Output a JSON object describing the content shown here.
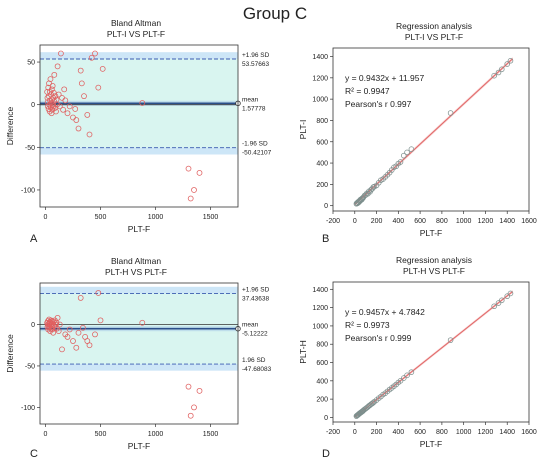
{
  "group_title": "Group C",
  "chart_data": [
    {
      "type": "scatter",
      "variant": "bland-altman",
      "panel_letter": "A",
      "title": "Bland Altman",
      "subtitle": "PLT-I VS PLT-F",
      "xlabel": "PLT-F",
      "ylabel": "Difference",
      "xlim": [
        -50,
        1750
      ],
      "ylim": [
        -120,
        70
      ],
      "xticks": [
        0,
        500,
        1000,
        1500
      ],
      "yticks": [
        -100,
        -50,
        0,
        50
      ],
      "mean": 1.57778,
      "upper_loa": 53.57663,
      "lower_loa": -50.42107,
      "labels": {
        "upper_sd": "+1.96 SD",
        "upper_val": "53.57663",
        "mean": "mean",
        "mean_val": "1.57778",
        "lower_sd": "-1.96 SD",
        "lower_val": "-50.42107"
      },
      "colors": {
        "band": "#d9f5f0",
        "band_edge": "#cde6f7",
        "mean_line": "#2b4f8a",
        "loa_line": "#3a5bb0",
        "point": "#e06060"
      },
      "points": [
        [
          15,
          15
        ],
        [
          18,
          8
        ],
        [
          20,
          3
        ],
        [
          22,
          -2
        ],
        [
          25,
          20
        ],
        [
          28,
          -5
        ],
        [
          30,
          10
        ],
        [
          32,
          25
        ],
        [
          35,
          0
        ],
        [
          38,
          -8
        ],
        [
          40,
          15
        ],
        [
          42,
          5
        ],
        [
          45,
          30
        ],
        [
          48,
          -3
        ],
        [
          50,
          12
        ],
        [
          52,
          2
        ],
        [
          55,
          -10
        ],
        [
          58,
          18
        ],
        [
          60,
          6
        ],
        [
          62,
          -6
        ],
        [
          65,
          22
        ],
        [
          68,
          0
        ],
        [
          70,
          8
        ],
        [
          72,
          -2
        ],
        [
          75,
          14
        ],
        [
          78,
          4
        ],
        [
          80,
          35
        ],
        [
          85,
          -4
        ],
        [
          90,
          10
        ],
        [
          95,
          -8
        ],
        [
          100,
          6
        ],
        [
          105,
          0
        ],
        [
          110,
          45
        ],
        [
          120,
          12
        ],
        [
          130,
          -2
        ],
        [
          140,
          60
        ],
        [
          150,
          8
        ],
        [
          160,
          -6
        ],
        [
          170,
          18
        ],
        [
          180,
          5
        ],
        [
          200,
          -10
        ],
        [
          220,
          -2
        ],
        [
          250,
          -15
        ],
        [
          270,
          -5
        ],
        [
          280,
          -18
        ],
        [
          300,
          -28
        ],
        [
          320,
          40
        ],
        [
          330,
          25
        ],
        [
          350,
          10
        ],
        [
          380,
          -12
        ],
        [
          400,
          -35
        ],
        [
          420,
          55
        ],
        [
          450,
          60
        ],
        [
          480,
          20
        ],
        [
          520,
          42
        ],
        [
          880,
          2
        ],
        [
          1300,
          -75
        ],
        [
          1320,
          -110
        ],
        [
          1350,
          -100
        ],
        [
          1400,
          -80
        ]
      ]
    },
    {
      "type": "scatter",
      "variant": "regression",
      "panel_letter": "B",
      "title": "Regression analysis",
      "subtitle": "PLT-I VS PLT-F",
      "xlabel": "PLT-F",
      "ylabel": "PLT-I",
      "xlim": [
        -200,
        1600
      ],
      "ylim": [
        -50,
        1480
      ],
      "xticks": [
        -200,
        0,
        200,
        400,
        600,
        800,
        1000,
        1200,
        1400,
        1600
      ],
      "yticks": [
        0,
        200,
        400,
        600,
        800,
        1000,
        1200,
        1400
      ],
      "equation": "y = 0.9432x + 11.957",
      "r2": "R² = 0.9947",
      "pearson": "Pearson's r  0.997",
      "fit": {
        "slope": 0.9432,
        "intercept": 11.957,
        "x_range": [
          0,
          1450
        ]
      },
      "colors": {
        "line": "#e26a6a",
        "band": "#f7cfcf",
        "point": "#7d8f8d"
      },
      "points": [
        [
          15,
          18
        ],
        [
          20,
          25
        ],
        [
          25,
          22
        ],
        [
          30,
          35
        ],
        [
          35,
          30
        ],
        [
          40,
          42
        ],
        [
          45,
          40
        ],
        [
          50,
          55
        ],
        [
          55,
          50
        ],
        [
          60,
          62
        ],
        [
          65,
          58
        ],
        [
          70,
          70
        ],
        [
          75,
          72
        ],
        [
          80,
          80
        ],
        [
          90,
          95
        ],
        [
          100,
          100
        ],
        [
          110,
          115
        ],
        [
          120,
          112
        ],
        [
          130,
          135
        ],
        [
          140,
          130
        ],
        [
          150,
          150
        ],
        [
          160,
          158
        ],
        [
          170,
          175
        ],
        [
          180,
          178
        ],
        [
          200,
          190
        ],
        [
          220,
          215
        ],
        [
          240,
          240
        ],
        [
          260,
          250
        ],
        [
          280,
          270
        ],
        [
          300,
          290
        ],
        [
          320,
          310
        ],
        [
          340,
          335
        ],
        [
          360,
          360
        ],
        [
          380,
          370
        ],
        [
          400,
          395
        ],
        [
          420,
          410
        ],
        [
          450,
          470
        ],
        [
          480,
          500
        ],
        [
          520,
          530
        ],
        [
          880,
          870
        ],
        [
          1280,
          1220
        ],
        [
          1320,
          1250
        ],
        [
          1350,
          1280
        ],
        [
          1400,
          1330
        ],
        [
          1430,
          1360
        ]
      ]
    },
    {
      "type": "scatter",
      "variant": "bland-altman",
      "panel_letter": "C",
      "title": "Bland Altman",
      "subtitle": "PLT-H VS PLT-F",
      "xlabel": "PLT-F",
      "ylabel": "Difference",
      "xlim": [
        -50,
        1750
      ],
      "ylim": [
        -120,
        50
      ],
      "xticks": [
        0,
        500,
        1000,
        1500
      ],
      "yticks": [
        -100,
        -50,
        0
      ],
      "mean": -5.12222,
      "upper_loa": 37.43638,
      "lower_loa": -47.68083,
      "labels": {
        "upper_sd": "+1.96 SD",
        "upper_val": "37.43638",
        "mean": "mean",
        "mean_val": "-5.12222",
        "lower_sd": "1.96 SD",
        "lower_val": "-47.68083"
      },
      "colors": {
        "band": "#d9f5f0",
        "band_edge": "#cde6f7",
        "mean_line": "#2b4f8a",
        "loa_line": "#3a5bb0",
        "point": "#e06060"
      },
      "points": [
        [
          15,
          2
        ],
        [
          18,
          -3
        ],
        [
          20,
          0
        ],
        [
          22,
          4
        ],
        [
          25,
          -6
        ],
        [
          28,
          1
        ],
        [
          30,
          -2
        ],
        [
          32,
          6
        ],
        [
          35,
          -4
        ],
        [
          38,
          0
        ],
        [
          40,
          3
        ],
        [
          42,
          -8
        ],
        [
          45,
          2
        ],
        [
          48,
          -1
        ],
        [
          50,
          5
        ],
        [
          52,
          -5
        ],
        [
          55,
          0
        ],
        [
          58,
          -3
        ],
        [
          60,
          4
        ],
        [
          62,
          -6
        ],
        [
          65,
          1
        ],
        [
          70,
          -10
        ],
        [
          75,
          3
        ],
        [
          80,
          -2
        ],
        [
          85,
          5
        ],
        [
          90,
          -4
        ],
        [
          95,
          0
        ],
        [
          100,
          2
        ],
        [
          105,
          -5
        ],
        [
          110,
          8
        ],
        [
          120,
          -8
        ],
        [
          130,
          0
        ],
        [
          150,
          -30
        ],
        [
          180,
          -12
        ],
        [
          200,
          -15
        ],
        [
          220,
          -6
        ],
        [
          250,
          -20
        ],
        [
          280,
          -28
        ],
        [
          300,
          -10
        ],
        [
          320,
          32
        ],
        [
          340,
          -4
        ],
        [
          360,
          -15
        ],
        [
          380,
          -20
        ],
        [
          400,
          -25
        ],
        [
          450,
          -12
        ],
        [
          480,
          38
        ],
        [
          500,
          5
        ],
        [
          880,
          2
        ],
        [
          1300,
          -75
        ],
        [
          1320,
          -110
        ],
        [
          1350,
          -100
        ],
        [
          1400,
          -80
        ]
      ]
    },
    {
      "type": "scatter",
      "variant": "regression",
      "panel_letter": "D",
      "title": "Regression analysis",
      "subtitle": "PLT-H VS PLT-F",
      "xlabel": "PLT-F",
      "ylabel": "PLT-H",
      "xlim": [
        -200,
        1600
      ],
      "ylim": [
        -50,
        1480
      ],
      "xticks": [
        -200,
        0,
        200,
        400,
        600,
        800,
        1000,
        1200,
        1400,
        1600
      ],
      "yticks": [
        0,
        200,
        400,
        600,
        800,
        1000,
        1200,
        1400
      ],
      "equation": "y = 0.9457x + 4.7842",
      "r2": "R² = 0.9973",
      "pearson": "Pearson's r  0.999",
      "fit": {
        "slope": 0.9457,
        "intercept": 4.7842,
        "x_range": [
          0,
          1450
        ]
      },
      "colors": {
        "line": "#e26a6a",
        "band": "#f7cfcf",
        "point": "#7d8f8d"
      },
      "points": [
        [
          15,
          14
        ],
        [
          20,
          20
        ],
        [
          25,
          26
        ],
        [
          30,
          28
        ],
        [
          35,
          34
        ],
        [
          40,
          40
        ],
        [
          45,
          44
        ],
        [
          50,
          50
        ],
        [
          55,
          52
        ],
        [
          60,
          58
        ],
        [
          65,
          62
        ],
        [
          70,
          68
        ],
        [
          75,
          70
        ],
        [
          80,
          78
        ],
        [
          90,
          88
        ],
        [
          100,
          96
        ],
        [
          110,
          106
        ],
        [
          120,
          115
        ],
        [
          130,
          126
        ],
        [
          140,
          134
        ],
        [
          150,
          145
        ],
        [
          160,
          152
        ],
        [
          170,
          162
        ],
        [
          180,
          172
        ],
        [
          200,
          190
        ],
        [
          220,
          210
        ],
        [
          240,
          228
        ],
        [
          260,
          250
        ],
        [
          280,
          265
        ],
        [
          300,
          285
        ],
        [
          320,
          305
        ],
        [
          340,
          322
        ],
        [
          360,
          342
        ],
        [
          380,
          360
        ],
        [
          400,
          382
        ],
        [
          420,
          400
        ],
        [
          450,
          430
        ],
        [
          480,
          460
        ],
        [
          520,
          495
        ],
        [
          880,
          845
        ],
        [
          1280,
          1215
        ],
        [
          1320,
          1250
        ],
        [
          1350,
          1280
        ],
        [
          1400,
          1325
        ],
        [
          1430,
          1355
        ]
      ]
    }
  ]
}
